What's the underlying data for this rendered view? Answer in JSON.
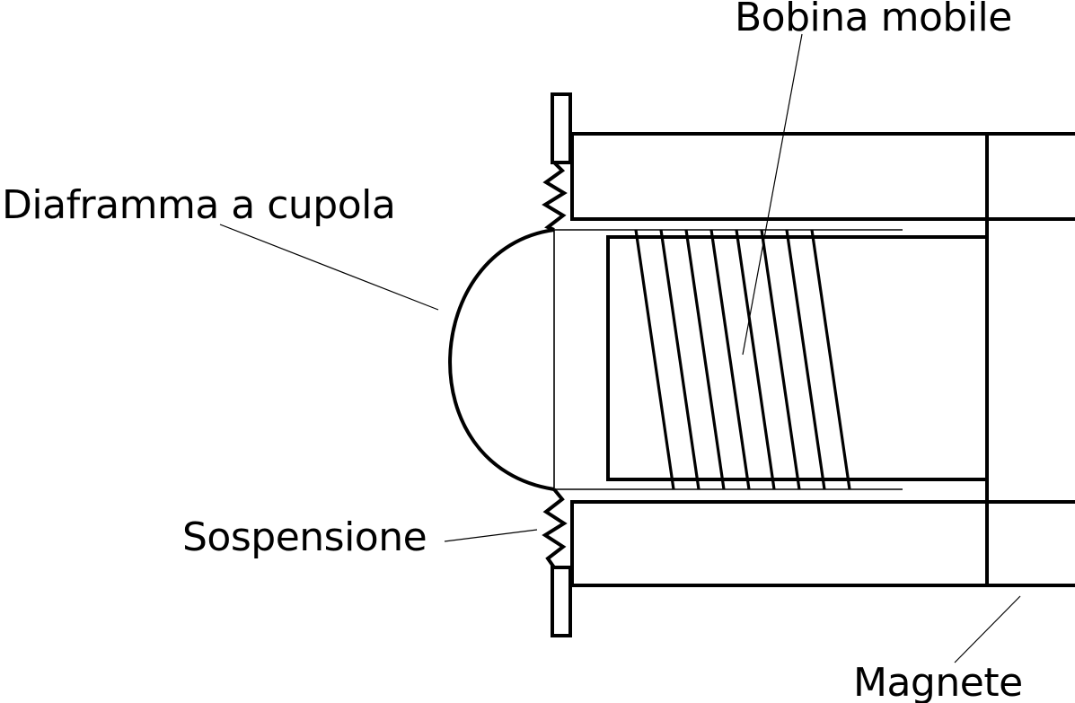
{
  "labels": {
    "voice_coil": "Bobina mobile",
    "dome": "Diaframma a cupola",
    "suspension": "Sospensione",
    "magnet": "Magnete"
  },
  "colors": {
    "stroke": "#000000",
    "background": "#ffffff"
  }
}
